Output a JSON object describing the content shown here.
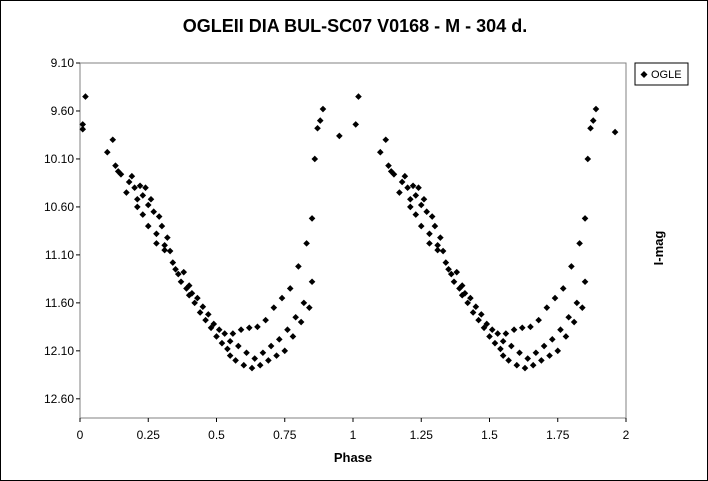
{
  "chart_data": {
    "type": "scatter",
    "title": "OGLEII DIA BUL-SC07  V0168 - M - 304 d.",
    "xlabel": "Phase",
    "ylabel": "I-mag",
    "xlim": [
      0,
      2
    ],
    "ylim": [
      9.1,
      12.8
    ],
    "y_inverted": true,
    "grid": false,
    "legend_position": "top-right",
    "x_ticks": [
      "0",
      "0.25",
      "0.5",
      "0.75",
      "1",
      "1.25",
      "1.5",
      "1.75",
      "2"
    ],
    "y_ticks": [
      "9.10",
      "9.60",
      "10.10",
      "10.60",
      "11.10",
      "11.60",
      "12.10",
      "12.60"
    ],
    "marker_color": "#000000",
    "marker_shape": "diamond",
    "series": [
      {
        "name": "OGLE",
        "points": [
          [
            0.01,
            9.74
          ],
          [
            0.01,
            9.79
          ],
          [
            0.02,
            9.45
          ],
          [
            0.1,
            10.03
          ],
          [
            0.12,
            9.9
          ],
          [
            0.13,
            10.17
          ],
          [
            0.14,
            10.23
          ],
          [
            0.15,
            10.26
          ],
          [
            0.17,
            10.45
          ],
          [
            0.18,
            10.34
          ],
          [
            0.19,
            10.28
          ],
          [
            0.2,
            10.4
          ],
          [
            0.21,
            10.52
          ],
          [
            0.21,
            10.6
          ],
          [
            0.22,
            10.38
          ],
          [
            0.23,
            10.48
          ],
          [
            0.23,
            10.68
          ],
          [
            0.24,
            10.4
          ],
          [
            0.25,
            10.58
          ],
          [
            0.25,
            10.8
          ],
          [
            0.26,
            10.52
          ],
          [
            0.27,
            10.65
          ],
          [
            0.28,
            10.88
          ],
          [
            0.28,
            10.98
          ],
          [
            0.29,
            10.7
          ],
          [
            0.3,
            10.8
          ],
          [
            0.31,
            11.0
          ],
          [
            0.31,
            11.05
          ],
          [
            0.32,
            10.92
          ],
          [
            0.33,
            11.06
          ],
          [
            0.34,
            11.18
          ],
          [
            0.35,
            11.25
          ],
          [
            0.36,
            11.3
          ],
          [
            0.37,
            11.38
          ],
          [
            0.38,
            11.28
          ],
          [
            0.39,
            11.45
          ],
          [
            0.4,
            11.52
          ],
          [
            0.4,
            11.42
          ],
          [
            0.41,
            11.5
          ],
          [
            0.42,
            11.6
          ],
          [
            0.43,
            11.55
          ],
          [
            0.44,
            11.7
          ],
          [
            0.45,
            11.64
          ],
          [
            0.46,
            11.78
          ],
          [
            0.47,
            11.72
          ],
          [
            0.48,
            11.86
          ],
          [
            0.49,
            11.82
          ],
          [
            0.5,
            11.95
          ],
          [
            0.51,
            11.88
          ],
          [
            0.52,
            12.02
          ],
          [
            0.53,
            11.92
          ],
          [
            0.54,
            12.08
          ],
          [
            0.55,
            12.0
          ],
          [
            0.55,
            12.15
          ],
          [
            0.56,
            11.92
          ],
          [
            0.57,
            12.2
          ],
          [
            0.58,
            12.05
          ],
          [
            0.59,
            11.88
          ],
          [
            0.6,
            12.25
          ],
          [
            0.61,
            12.12
          ],
          [
            0.62,
            11.86
          ],
          [
            0.63,
            12.28
          ],
          [
            0.64,
            12.18
          ],
          [
            0.65,
            11.85
          ],
          [
            0.66,
            12.25
          ],
          [
            0.67,
            12.12
          ],
          [
            0.68,
            11.78
          ],
          [
            0.69,
            12.2
          ],
          [
            0.7,
            12.05
          ],
          [
            0.71,
            11.65
          ],
          [
            0.72,
            12.15
          ],
          [
            0.73,
            11.98
          ],
          [
            0.74,
            11.55
          ],
          [
            0.75,
            12.1
          ],
          [
            0.76,
            11.88
          ],
          [
            0.77,
            11.45
          ],
          [
            0.78,
            11.95
          ],
          [
            0.79,
            11.75
          ],
          [
            0.8,
            11.22
          ],
          [
            0.81,
            11.8
          ],
          [
            0.82,
            11.6
          ],
          [
            0.83,
            10.98
          ],
          [
            0.84,
            11.65
          ],
          [
            0.85,
            11.38
          ],
          [
            0.85,
            10.72
          ],
          [
            0.86,
            10.1
          ],
          [
            0.87,
            9.78
          ],
          [
            0.88,
            9.7
          ],
          [
            0.89,
            9.58
          ],
          [
            0.95,
            9.86
          ],
          [
            1.01,
            9.74
          ],
          [
            1.02,
            9.45
          ],
          [
            1.1,
            10.03
          ],
          [
            1.12,
            9.9
          ],
          [
            1.13,
            10.17
          ],
          [
            1.14,
            10.23
          ],
          [
            1.15,
            10.26
          ],
          [
            1.17,
            10.45
          ],
          [
            1.18,
            10.34
          ],
          [
            1.19,
            10.28
          ],
          [
            1.2,
            10.4
          ],
          [
            1.21,
            10.52
          ],
          [
            1.21,
            10.6
          ],
          [
            1.22,
            10.38
          ],
          [
            1.23,
            10.48
          ],
          [
            1.23,
            10.68
          ],
          [
            1.24,
            10.4
          ],
          [
            1.25,
            10.58
          ],
          [
            1.25,
            10.8
          ],
          [
            1.26,
            10.52
          ],
          [
            1.27,
            10.65
          ],
          [
            1.28,
            10.88
          ],
          [
            1.28,
            10.98
          ],
          [
            1.29,
            10.7
          ],
          [
            1.3,
            10.8
          ],
          [
            1.31,
            11.0
          ],
          [
            1.31,
            11.05
          ],
          [
            1.32,
            10.92
          ],
          [
            1.33,
            11.06
          ],
          [
            1.34,
            11.18
          ],
          [
            1.35,
            11.25
          ],
          [
            1.36,
            11.3
          ],
          [
            1.37,
            11.38
          ],
          [
            1.38,
            11.28
          ],
          [
            1.39,
            11.45
          ],
          [
            1.4,
            11.52
          ],
          [
            1.4,
            11.42
          ],
          [
            1.41,
            11.5
          ],
          [
            1.42,
            11.6
          ],
          [
            1.43,
            11.55
          ],
          [
            1.44,
            11.7
          ],
          [
            1.45,
            11.64
          ],
          [
            1.46,
            11.78
          ],
          [
            1.47,
            11.72
          ],
          [
            1.48,
            11.86
          ],
          [
            1.49,
            11.82
          ],
          [
            1.5,
            11.95
          ],
          [
            1.51,
            11.88
          ],
          [
            1.52,
            12.02
          ],
          [
            1.53,
            11.92
          ],
          [
            1.54,
            12.08
          ],
          [
            1.55,
            12.0
          ],
          [
            1.55,
            12.15
          ],
          [
            1.56,
            11.92
          ],
          [
            1.57,
            12.2
          ],
          [
            1.58,
            12.05
          ],
          [
            1.59,
            11.88
          ],
          [
            1.6,
            12.25
          ],
          [
            1.61,
            12.12
          ],
          [
            1.62,
            11.86
          ],
          [
            1.63,
            12.28
          ],
          [
            1.64,
            12.18
          ],
          [
            1.65,
            11.85
          ],
          [
            1.66,
            12.25
          ],
          [
            1.67,
            12.12
          ],
          [
            1.68,
            11.78
          ],
          [
            1.69,
            12.2
          ],
          [
            1.7,
            12.05
          ],
          [
            1.71,
            11.65
          ],
          [
            1.72,
            12.15
          ],
          [
            1.73,
            11.98
          ],
          [
            1.74,
            11.55
          ],
          [
            1.75,
            12.1
          ],
          [
            1.76,
            11.88
          ],
          [
            1.77,
            11.45
          ],
          [
            1.78,
            11.95
          ],
          [
            1.79,
            11.75
          ],
          [
            1.8,
            11.22
          ],
          [
            1.81,
            11.8
          ],
          [
            1.82,
            11.6
          ],
          [
            1.83,
            10.98
          ],
          [
            1.84,
            11.65
          ],
          [
            1.85,
            11.38
          ],
          [
            1.85,
            10.72
          ],
          [
            1.86,
            10.1
          ],
          [
            1.87,
            9.78
          ],
          [
            1.88,
            9.7
          ],
          [
            1.89,
            9.58
          ],
          [
            1.96,
            9.82
          ]
        ]
      }
    ]
  }
}
